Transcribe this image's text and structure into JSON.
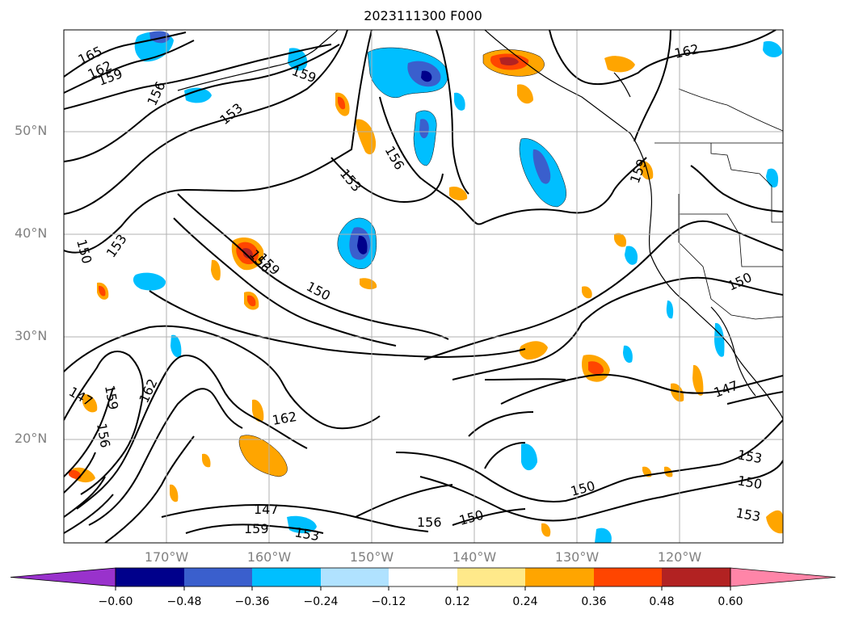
{
  "title": "2023111300 F000",
  "map": {
    "projection": "cylindrical",
    "lon_range": [
      -180,
      -110
    ],
    "lat_range": [
      10,
      60
    ],
    "gridlines": true,
    "lat_labels": [
      "20°N",
      "30°N",
      "40°N",
      "50°N"
    ],
    "lat_values": [
      20,
      30,
      40,
      50
    ],
    "lon_labels": [
      "170°W",
      "160°W",
      "150°W",
      "140°W",
      "130°W",
      "120°W"
    ],
    "lon_values": [
      -170,
      -160,
      -150,
      -140,
      -130,
      -120
    ],
    "contour_labels": [
      "165",
      "162",
      "159",
      "156",
      "153",
      "159",
      "153",
      "150",
      "156",
      "159",
      "150",
      "153",
      "156",
      "162",
      "159",
      "150",
      "147",
      "153",
      "150",
      "162",
      "147",
      "159",
      "156",
      "162",
      "159",
      "156",
      "150",
      "147",
      "153",
      "150",
      "153"
    ]
  },
  "colorbar": {
    "ticks": [
      "−0.60",
      "−0.48",
      "−0.36",
      "−0.24",
      "−0.12",
      "0.12",
      "0.24",
      "0.36",
      "0.48",
      "0.60"
    ],
    "colors": [
      "#9932cc",
      "#00008b",
      "#3a5fcd",
      "#00bfff",
      "#b0e2ff",
      "#ffffff",
      "#ffe98a",
      "#ffa500",
      "#ff4500",
      "#b22222",
      "#ff85a8"
    ],
    "extend": "both"
  }
}
